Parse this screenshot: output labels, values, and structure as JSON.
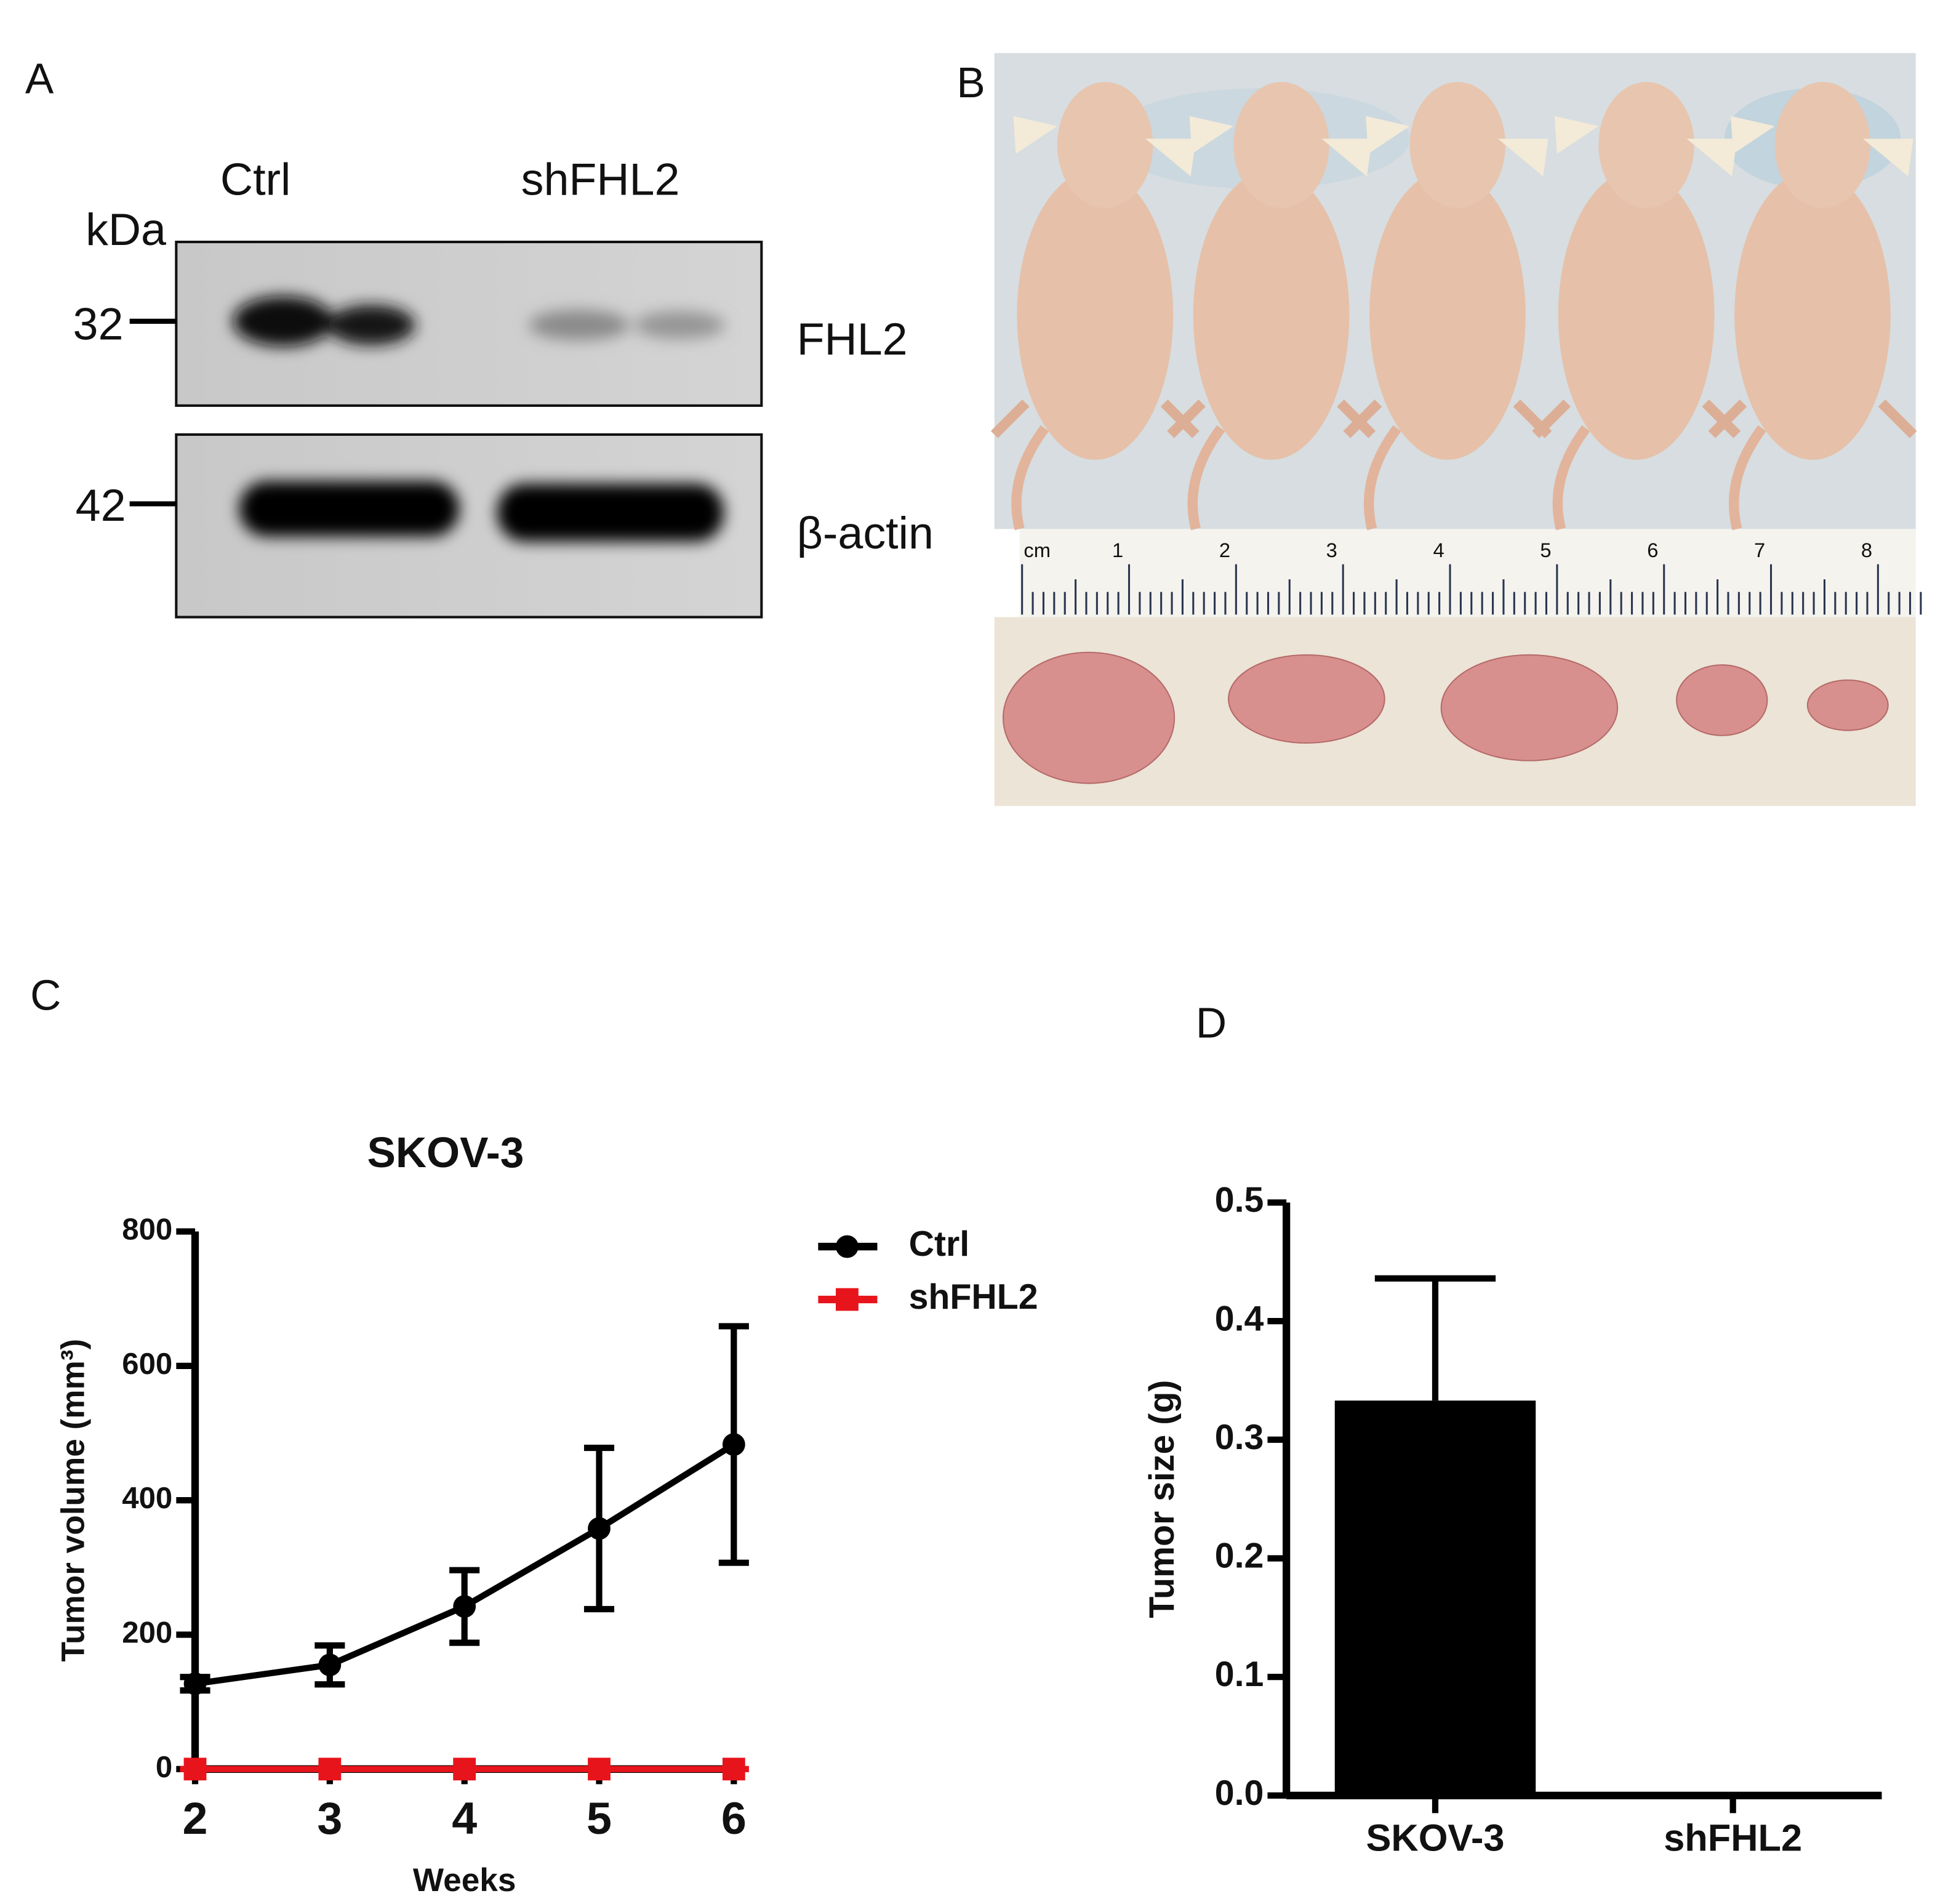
{
  "panel_labels": [
    "A",
    "B",
    "C",
    "D"
  ],
  "blot": {
    "lanes": [
      "Ctrl",
      "shFHL2"
    ],
    "unit": "kDa",
    "bands": [
      {
        "marker": "32",
        "label": "FHL2"
      },
      {
        "marker": "42",
        "label": "β-actin"
      }
    ]
  },
  "photo": {
    "ruler_labels": [
      "cm",
      "1",
      "2",
      "3",
      "4",
      "5",
      "6",
      "7",
      "8"
    ]
  },
  "chart_data": [
    {
      "type": "line",
      "title": "SKOV-3",
      "x_label": "Weeks",
      "y_label": "Tumor volume (mm³)",
      "x": [
        2,
        3,
        4,
        5,
        6
      ],
      "xlim": [
        2,
        6
      ],
      "xticks": [
        2,
        3,
        4,
        5,
        6
      ],
      "ylim": [
        0,
        800
      ],
      "yticks": [
        0,
        200,
        400,
        600,
        800
      ],
      "series": [
        {
          "name": "Ctrl",
          "color": "#000000",
          "marker": "circle",
          "values": [
            127,
            155,
            242,
            358,
            483
          ],
          "errors": [
            10,
            29,
            54,
            120,
            176
          ]
        },
        {
          "name": "shFHL2",
          "color": "#e8141b",
          "marker": "square",
          "values": [
            0,
            0,
            0,
            0,
            0
          ],
          "errors": [
            0,
            0,
            0,
            0,
            0
          ]
        }
      ]
    },
    {
      "type": "bar",
      "y_label": "Tumor size (g)",
      "categories": [
        "SKOV-3",
        "shFHL2"
      ],
      "values": [
        0.333,
        0
      ],
      "errors": [
        0.103,
        0
      ],
      "color": "#000000",
      "ylim": [
        0,
        0.5
      ],
      "yticks": [
        {
          "value": 0,
          "label": "0.0"
        },
        0.1,
        0.2,
        0.3,
        0.4,
        0.5
      ]
    }
  ]
}
